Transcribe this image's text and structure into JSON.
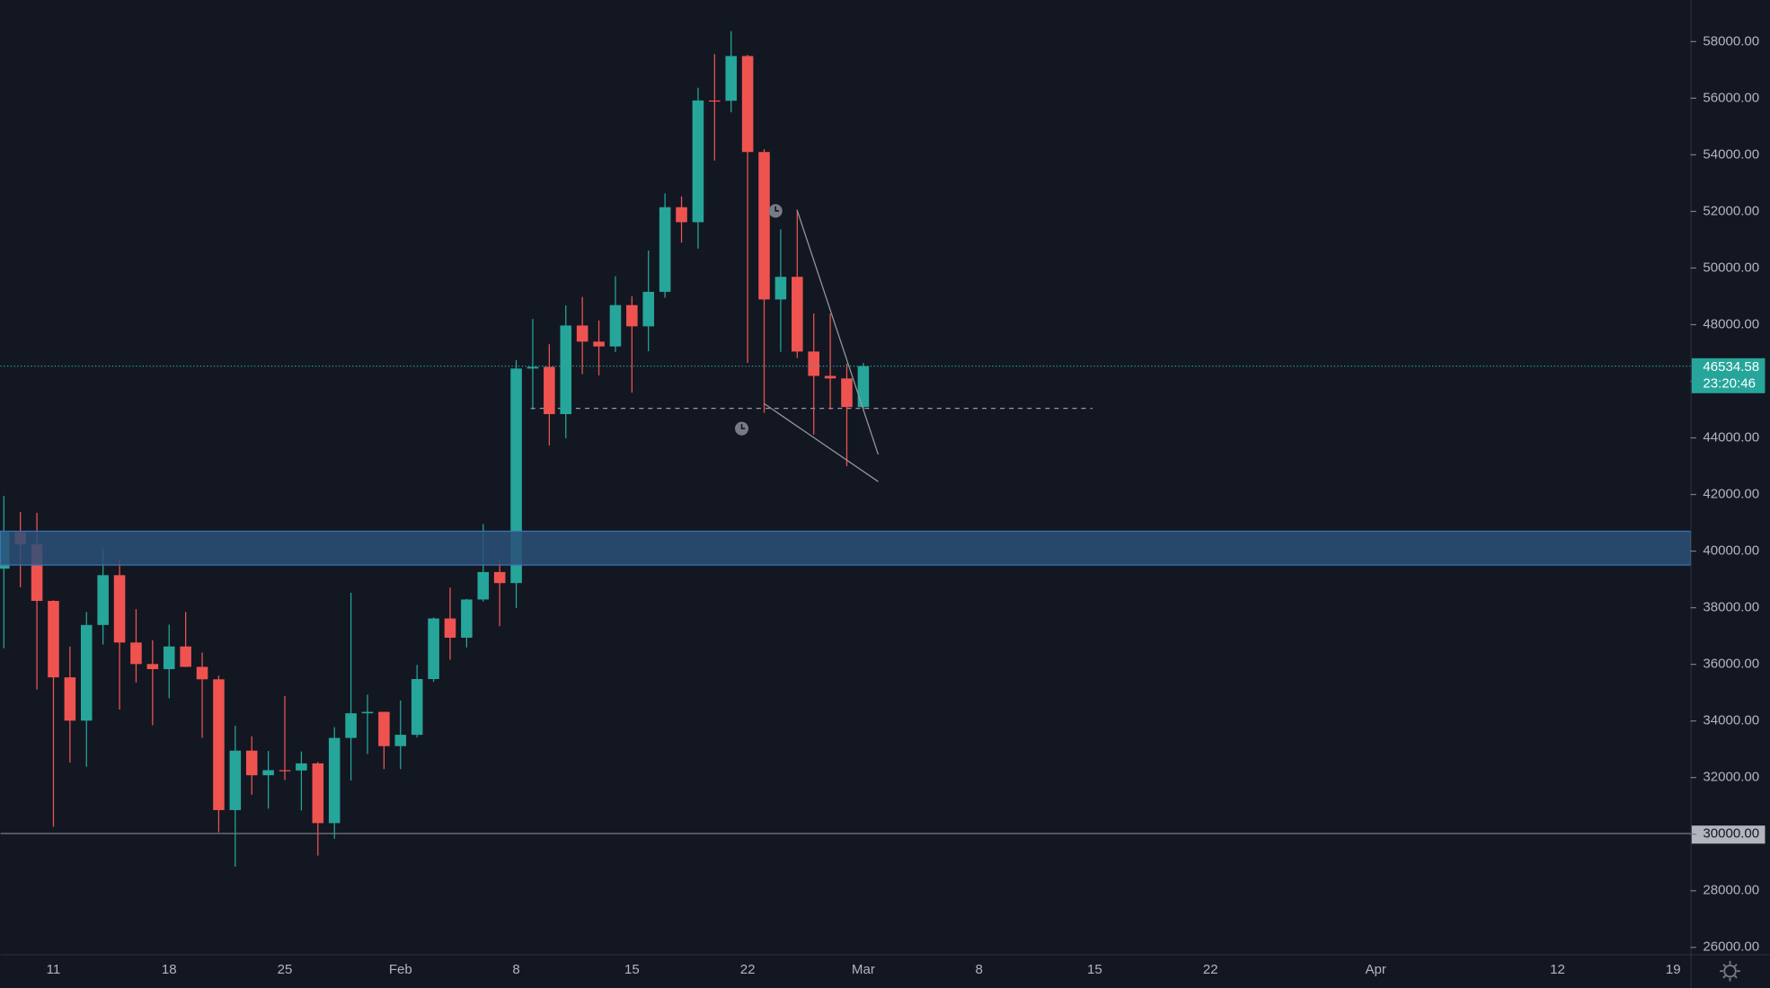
{
  "chart_data": {
    "type": "candlestick",
    "categories": [
      null,
      null,
      null,
      "11",
      null,
      null,
      null,
      null,
      null,
      null,
      "18",
      null,
      null,
      null,
      null,
      null,
      null,
      "25",
      null,
      null,
      null,
      null,
      null,
      null,
      "Feb",
      null,
      null,
      null,
      null,
      null,
      null,
      "8",
      null,
      null,
      null,
      null,
      null,
      null,
      "15",
      null,
      null,
      null,
      null,
      null,
      null,
      "22",
      null,
      null,
      null,
      null,
      null,
      null,
      "Mar",
      null,
      null,
      null,
      null,
      null,
      null,
      "8",
      null,
      null,
      null,
      null,
      null,
      null,
      "15",
      null,
      null,
      null,
      null,
      null,
      null,
      "22",
      null,
      null,
      null,
      null,
      null,
      null,
      null,
      null,
      null,
      "Apr",
      null,
      null,
      null,
      null,
      null,
      null,
      null,
      null,
      null,
      null,
      "12",
      null,
      null,
      null,
      null,
      null,
      null,
      "19"
    ],
    "open": [
      39380,
      40670,
      40240,
      38240,
      35540,
      34010,
      37390,
      39150,
      36770,
      36010,
      35830,
      36630,
      35910,
      35470,
      30850,
      32950,
      32080,
      32260,
      32250,
      32500,
      30390,
      33400,
      34270,
      34320,
      33110,
      33510,
      35480,
      37620,
      36940,
      38290,
      39260,
      38870,
      46450,
      46510,
      44840,
      47970,
      47400,
      47230,
      48690,
      47940,
      49160,
      52150,
      51620,
      55920,
      55910,
      57490,
      54100,
      48890,
      49690,
      47050,
      46190,
      46100,
      45090,
      null,
      null,
      null,
      null,
      null,
      null,
      null,
      null,
      null,
      null,
      null,
      null,
      null,
      null,
      null,
      null,
      null,
      null,
      null,
      null,
      null,
      null,
      null,
      null,
      null,
      null,
      null,
      null,
      null,
      null,
      null,
      null,
      null,
      null,
      null,
      null,
      null,
      null,
      null,
      null,
      null,
      null,
      null,
      null,
      null,
      null,
      null,
      null,
      null
    ],
    "high": [
      41950,
      41380,
      41350,
      38260,
      36630,
      37850,
      40100,
      39700,
      37950,
      36850,
      37400,
      37850,
      36415,
      35600,
      33830,
      33460,
      32940,
      34880,
      32920,
      32550,
      33780,
      38530,
      34930,
      34330,
      34720,
      35980,
      37660,
      38710,
      38310,
      40950,
      39700,
      46750,
      48200,
      47310,
      48680,
      48980,
      48150,
      49710,
      49000,
      50620,
      52640,
      52530,
      56370,
      57560,
      58370,
      57530,
      54200,
      51370,
      52050,
      48390,
      48390,
      46620,
      46650,
      null,
      null,
      null,
      null,
      null,
      null,
      null,
      null,
      null,
      null,
      null,
      null,
      null,
      null,
      null,
      null,
      null,
      null,
      null,
      null,
      null,
      null,
      null,
      null,
      null,
      null,
      null,
      null,
      null,
      null,
      null,
      null,
      null,
      null,
      null,
      null,
      null,
      null,
      null,
      null,
      null,
      null,
      null,
      null,
      null,
      null,
      null,
      null,
      null
    ],
    "low": [
      36570,
      38720,
      35110,
      30260,
      32530,
      32380,
      36700,
      34400,
      35360,
      33850,
      34800,
      35900,
      33400,
      30070,
      28850,
      31390,
      30900,
      31910,
      30840,
      29240,
      29840,
      31900,
      32830,
      32300,
      32300,
      33420,
      35380,
      36160,
      36600,
      38220,
      37350,
      37990,
      45000,
      43730,
      43990,
      46250,
      46210,
      47030,
      45600,
      47060,
      48950,
      50900,
      50690,
      53800,
      55500,
      46650,
      44890,
      47040,
      46820,
      44110,
      45000,
      43000,
      45000,
      null,
      null,
      null,
      null,
      null,
      null,
      null,
      null,
      null,
      null,
      null,
      null,
      null,
      null,
      null,
      null,
      null,
      null,
      null,
      null,
      null,
      null,
      null,
      null,
      null,
      null,
      null,
      null,
      null,
      null,
      null,
      null,
      null,
      null,
      null,
      null,
      null,
      null,
      null,
      null,
      null,
      null,
      null,
      null,
      null,
      null,
      null,
      null,
      null
    ],
    "close": [
      40670,
      40240,
      38240,
      35540,
      34010,
      37390,
      39150,
      36770,
      36010,
      35830,
      36630,
      35910,
      35470,
      30850,
      32950,
      32080,
      32260,
      32250,
      32500,
      30390,
      33400,
      34270,
      34320,
      33110,
      33510,
      35480,
      37620,
      36940,
      38290,
      39260,
      38870,
      46450,
      46510,
      44840,
      47970,
      47400,
      47230,
      48690,
      47940,
      49160,
      52150,
      51620,
      55920,
      55910,
      57490,
      54100,
      48890,
      49690,
      47050,
      46190,
      46100,
      45090,
      46534.58,
      null,
      null,
      null,
      null,
      null,
      null,
      null,
      null,
      null,
      null,
      null,
      null,
      null,
      null,
      null,
      null,
      null,
      null,
      null,
      null,
      null,
      null,
      null,
      null,
      null,
      null,
      null,
      null,
      null,
      null,
      null,
      null,
      null,
      null,
      null,
      null,
      null,
      null,
      null,
      null,
      null,
      null,
      null,
      null,
      null,
      null,
      null,
      null,
      null
    ],
    "up_color": "#26a69a",
    "down_color": "#ef5350",
    "ylim": [
      25760,
      59470
    ],
    "yticks": [
      {
        "value": 26000,
        "label": "26000.00"
      },
      {
        "value": 28000,
        "label": "28000.00"
      },
      {
        "value": 30000,
        "label": "30000.00"
      },
      {
        "value": 32000,
        "label": "32000.00"
      },
      {
        "value": 34000,
        "label": "34000.00"
      },
      {
        "value": 36000,
        "label": "36000.00"
      },
      {
        "value": 38000,
        "label": "38000.00"
      },
      {
        "value": 40000,
        "label": "40000.00"
      },
      {
        "value": 42000,
        "label": "42000.00"
      },
      {
        "value": 44000,
        "label": "44000.00"
      },
      {
        "value": 46000,
        "label": "46000.00"
      },
      {
        "value": 48000,
        "label": "48000.00"
      },
      {
        "value": 50000,
        "label": "50000.00"
      },
      {
        "value": 52000,
        "label": "52000.00"
      },
      {
        "value": 54000,
        "label": "54000.00"
      },
      {
        "value": 56000,
        "label": "56000.00"
      },
      {
        "value": 58000,
        "label": "58000.00"
      }
    ],
    "countdown": "23:20:46",
    "grid": false
  }
}
